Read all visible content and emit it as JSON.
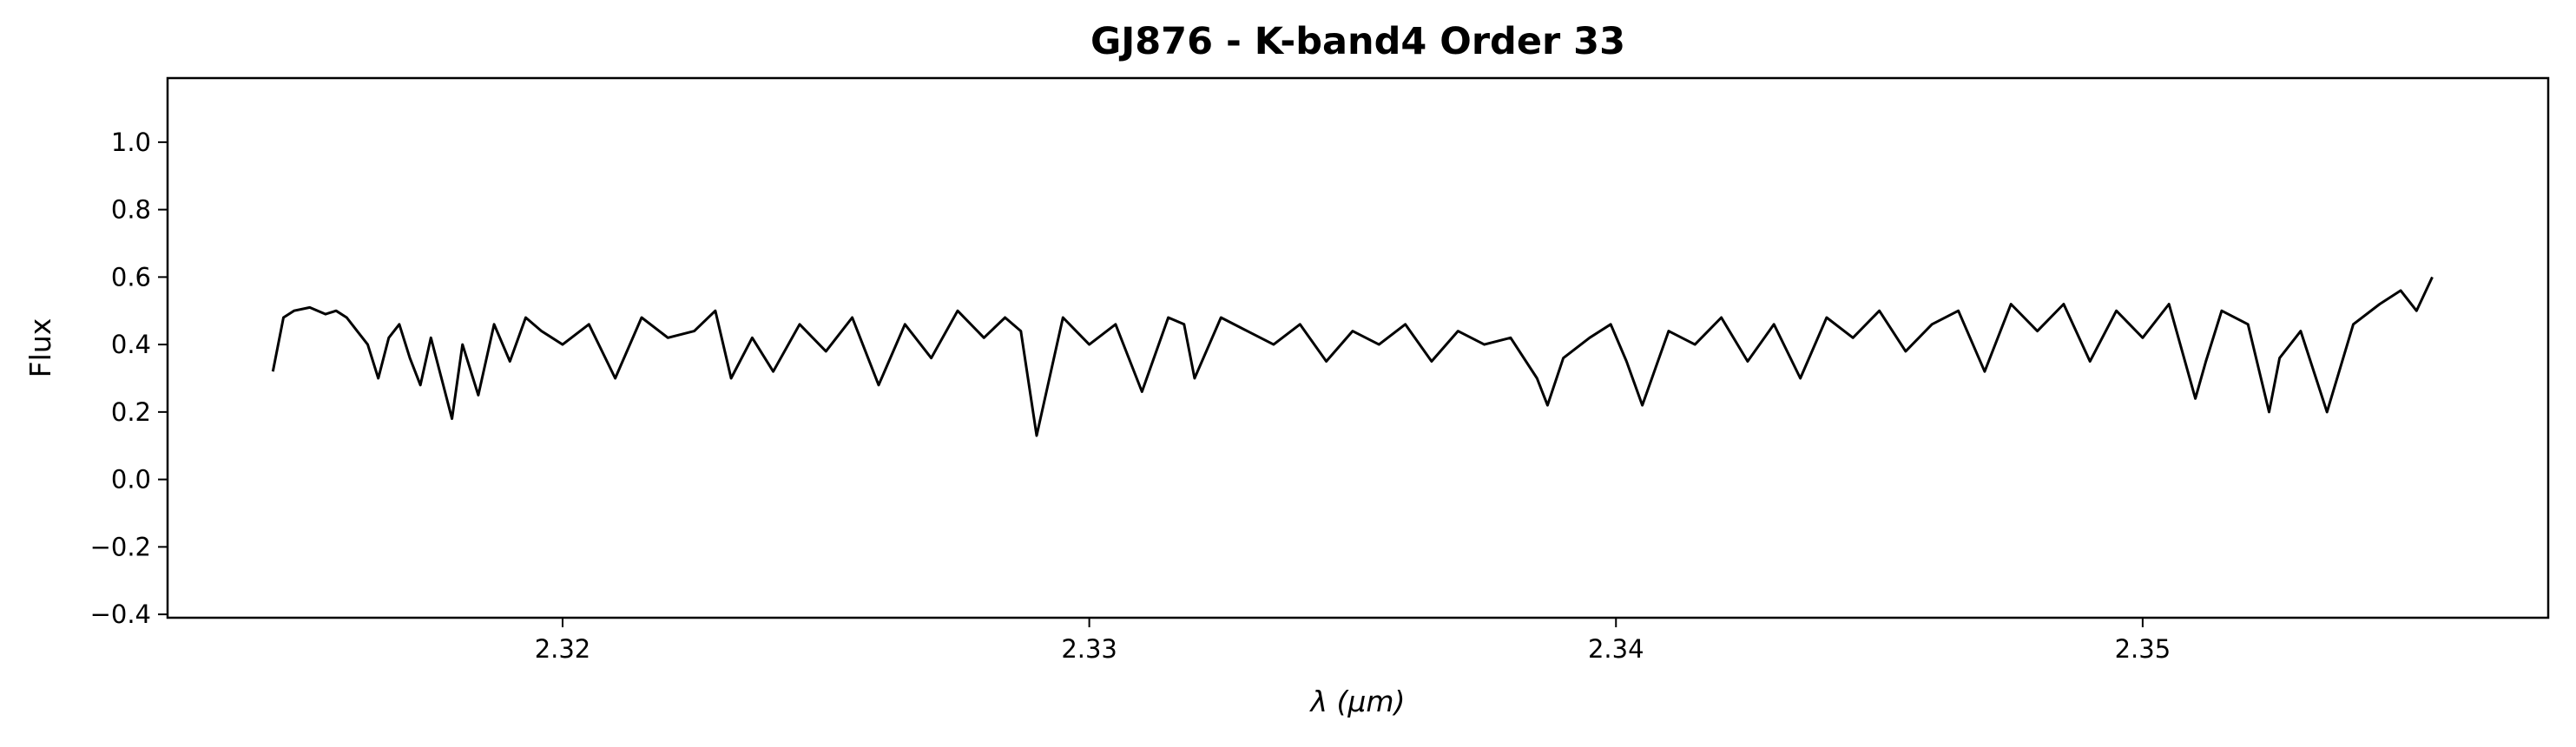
{
  "chart_data": {
    "type": "line",
    "title": "GJ876 - K-band4 Order 33",
    "xlabel": "λ (μm)",
    "ylabel": "Flux",
    "xlim": [
      2.3125,
      2.3577
    ],
    "ylim": [
      -0.41,
      1.19
    ],
    "xticks": [
      2.32,
      2.33,
      2.34,
      2.35
    ],
    "xtick_labels": [
      "2.32",
      "2.33",
      "2.34",
      "2.35"
    ],
    "yticks": [
      -0.4,
      -0.2,
      0.0,
      0.2,
      0.4,
      0.6,
      0.8,
      1.0
    ],
    "ytick_labels": [
      "−0.4",
      "−0.2",
      "0.0",
      "0.2",
      "0.4",
      "0.6",
      "0.8",
      "1.0"
    ],
    "grid": false,
    "line_color": "#000000",
    "series": [
      {
        "x": [
          2.3145,
          2.3147,
          2.3149,
          2.3152,
          2.3155,
          2.3157,
          2.3159,
          2.3161,
          2.3163,
          2.3165,
          2.3167,
          2.3169,
          2.3171,
          2.3173,
          2.3175,
          2.3177,
          2.3179,
          2.3181,
          2.3184,
          2.3187,
          2.319,
          2.3193,
          2.3196,
          2.32,
          2.3205,
          2.321,
          2.3215,
          2.322,
          2.3225,
          2.3229,
          2.3232,
          2.3236,
          2.324,
          2.3245,
          2.325,
          2.3255,
          2.326,
          2.3265,
          2.327,
          2.3275,
          2.328,
          2.3284,
          2.3287,
          2.329,
          2.3295,
          2.33,
          2.3305,
          2.331,
          2.3315,
          2.3318,
          2.332,
          2.3325,
          2.333,
          2.3335,
          2.334,
          2.3345,
          2.335,
          2.3355,
          2.336,
          2.3365,
          2.337,
          2.3375,
          2.338,
          2.3385,
          2.3387,
          2.339,
          2.3395,
          2.3399,
          2.3402,
          2.3405,
          2.341,
          2.3415,
          2.342,
          2.3425,
          2.343,
          2.3435,
          2.344,
          2.3445,
          2.345,
          2.3455,
          2.346,
          2.3465,
          2.347,
          2.3475,
          2.348,
          2.3485,
          2.349,
          2.3495,
          2.35,
          2.3505,
          2.351,
          2.3512,
          2.3515,
          2.352,
          2.3524,
          2.3526,
          2.353,
          2.3535,
          2.354,
          2.3545,
          2.3549,
          2.3552,
          2.3555
        ],
        "y": [
          0.32,
          0.48,
          0.5,
          0.51,
          0.49,
          0.5,
          0.48,
          0.44,
          0.4,
          0.3,
          0.42,
          0.46,
          0.36,
          0.28,
          0.42,
          0.3,
          0.18,
          0.4,
          0.25,
          0.46,
          0.35,
          0.48,
          0.44,
          0.4,
          0.46,
          0.3,
          0.48,
          0.42,
          0.44,
          0.5,
          0.3,
          0.42,
          0.32,
          0.46,
          0.38,
          0.48,
          0.28,
          0.46,
          0.36,
          0.5,
          0.42,
          0.48,
          0.44,
          0.13,
          0.48,
          0.4,
          0.46,
          0.26,
          0.48,
          0.46,
          0.3,
          0.48,
          0.44,
          0.4,
          0.46,
          0.35,
          0.44,
          0.4,
          0.46,
          0.35,
          0.44,
          0.4,
          0.42,
          0.3,
          0.22,
          0.36,
          0.42,
          0.46,
          0.35,
          0.22,
          0.44,
          0.4,
          0.48,
          0.35,
          0.46,
          0.3,
          0.48,
          0.42,
          0.5,
          0.38,
          0.46,
          0.5,
          0.32,
          0.52,
          0.44,
          0.52,
          0.35,
          0.5,
          0.42,
          0.52,
          0.24,
          0.35,
          0.5,
          0.46,
          0.2,
          0.36,
          0.44,
          0.2,
          0.46,
          0.52,
          0.56,
          0.5,
          0.6
        ]
      }
    ]
  }
}
